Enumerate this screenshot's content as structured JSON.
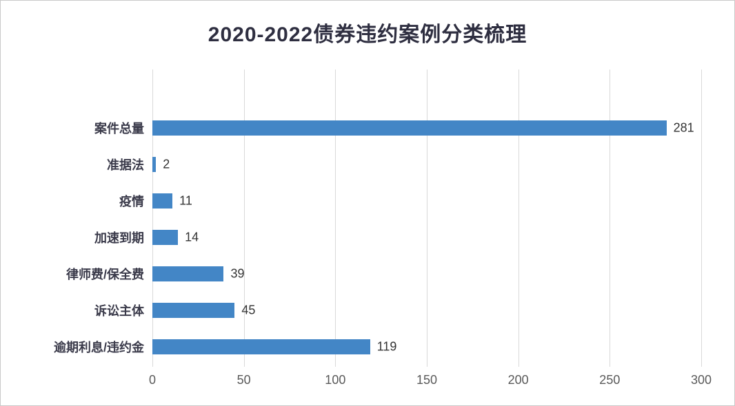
{
  "chart_data": {
    "type": "bar",
    "orientation": "horizontal",
    "title": "2020-2022债券违约案例分类梳理",
    "categories": [
      "案件总量",
      "准据法",
      "疫情",
      "加速到期",
      "律师费/保全费",
      "诉讼主体",
      "逾期利息/违约金"
    ],
    "values": [
      281,
      2,
      11,
      14,
      39,
      45,
      119
    ],
    "xlabel": "",
    "ylabel": "",
    "xlim": [
      0,
      300
    ],
    "x_ticks": [
      0,
      50,
      100,
      150,
      200,
      250,
      300
    ],
    "grid": true,
    "legend": "none",
    "value_labels": true,
    "bar_color": "#4386C6"
  },
  "colors": {
    "bar": "#4386C6",
    "gridline": "#d9d9d9",
    "title_text": "#2e2e40",
    "category_text": "#3a3a4a",
    "tick_text": "#595959",
    "frame_border": "#c9c9c9",
    "background": "#ffffff"
  }
}
